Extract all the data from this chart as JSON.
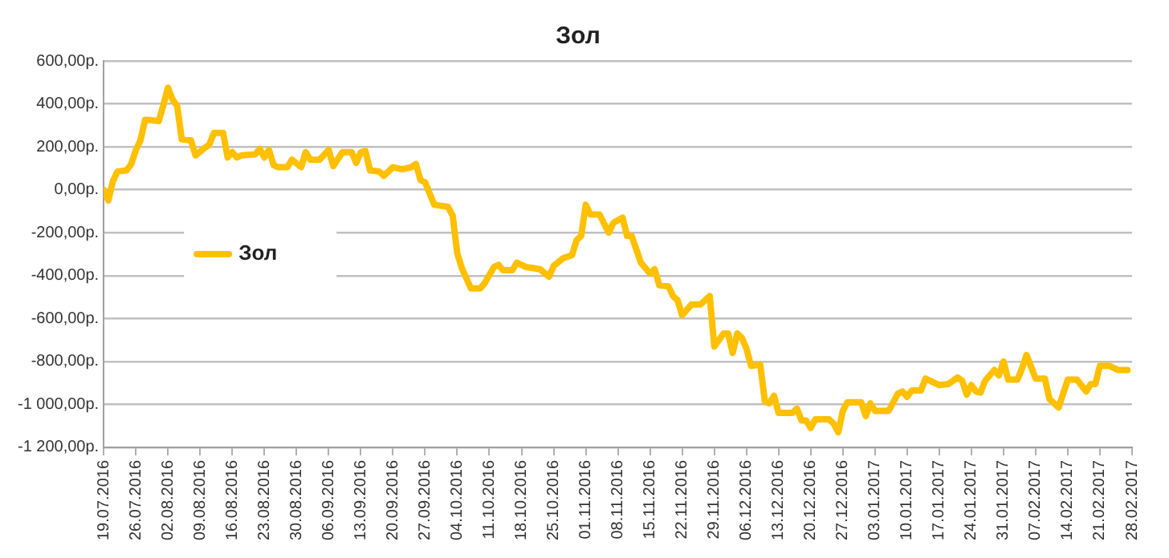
{
  "chart_data": {
    "type": "line",
    "title": "Зол",
    "xlim": [
      "2016-07-19",
      "2017-02-28"
    ],
    "xticks": [
      {
        "value": "2016-07-19",
        "label": "19.07.2016"
      },
      {
        "value": "2016-07-26",
        "label": "26.07.2016"
      },
      {
        "value": "2016-08-02",
        "label": "02.08.2016"
      },
      {
        "value": "2016-08-09",
        "label": "09.08.2016"
      },
      {
        "value": "2016-08-16",
        "label": "16.08.2016"
      },
      {
        "value": "2016-08-23",
        "label": "23.08.2016"
      },
      {
        "value": "2016-08-30",
        "label": "30.08.2016"
      },
      {
        "value": "2016-09-06",
        "label": "06.09.2016"
      },
      {
        "value": "2016-09-13",
        "label": "13.09.2016"
      },
      {
        "value": "2016-09-20",
        "label": "20.09.2016"
      },
      {
        "value": "2016-09-27",
        "label": "27.09.2016"
      },
      {
        "value": "2016-10-04",
        "label": "04.10.2016"
      },
      {
        "value": "2016-10-11",
        "label": "11.10.2016"
      },
      {
        "value": "2016-10-18",
        "label": "18.10.2016"
      },
      {
        "value": "2016-10-25",
        "label": "25.10.2016"
      },
      {
        "value": "2016-11-01",
        "label": "01.11.2016"
      },
      {
        "value": "2016-11-08",
        "label": "08.11.2016"
      },
      {
        "value": "2016-11-15",
        "label": "15.11.2016"
      },
      {
        "value": "2016-11-22",
        "label": "22.11.2016"
      },
      {
        "value": "2016-11-29",
        "label": "29.11.2016"
      },
      {
        "value": "2016-12-06",
        "label": "06.12.2016"
      },
      {
        "value": "2016-12-13",
        "label": "13.12.2016"
      },
      {
        "value": "2016-12-20",
        "label": "20.12.2016"
      },
      {
        "value": "2016-12-27",
        "label": "27.12.2016"
      },
      {
        "value": "2017-01-03",
        "label": "03.01.2017"
      },
      {
        "value": "2017-01-10",
        "label": "10.01.2017"
      },
      {
        "value": "2017-01-17",
        "label": "17.01.2017"
      },
      {
        "value": "2017-01-24",
        "label": "24.01.2017"
      },
      {
        "value": "2017-01-31",
        "label": "31.01.2017"
      },
      {
        "value": "2017-02-07",
        "label": "07.02.2017"
      },
      {
        "value": "2017-02-14",
        "label": "14.02.2017"
      },
      {
        "value": "2017-02-21",
        "label": "21.02.2017"
      },
      {
        "value": "2017-02-28",
        "label": "28.02.2017"
      }
    ],
    "ylim": [
      -1200,
      600
    ],
    "yticks": [
      {
        "value": -1200,
        "label": "-1 200,00р."
      },
      {
        "value": -1000,
        "label": "-1 000,00р."
      },
      {
        "value": -800,
        "label": "-800,00р."
      },
      {
        "value": -600,
        "label": "-600,00р."
      },
      {
        "value": -400,
        "label": "-400,00р."
      },
      {
        "value": -200,
        "label": "-200,00р."
      },
      {
        "value": 0,
        "label": "0,00р."
      },
      {
        "value": 200,
        "label": "200,00р."
      },
      {
        "value": 400,
        "label": "400,00р."
      },
      {
        "value": 600,
        "label": "600,00р."
      }
    ],
    "grid": "y",
    "legend": "left",
    "marker": "none",
    "line_style": "solid",
    "series": [
      {
        "name": "Зол",
        "color": "#ffc000",
        "x": [
          "2016-07-19",
          "2016-07-20",
          "2016-07-21",
          "2016-07-22",
          "2016-07-24",
          "2016-07-25",
          "2016-07-26",
          "2016-07-27",
          "2016-07-28",
          "2016-07-29",
          "2016-07-31",
          "2016-08-01",
          "2016-08-02",
          "2016-08-03",
          "2016-08-04",
          "2016-08-05",
          "2016-08-07",
          "2016-08-08",
          "2016-08-10",
          "2016-08-11",
          "2016-08-12",
          "2016-08-14",
          "2016-08-15",
          "2016-08-16",
          "2016-08-17",
          "2016-08-18",
          "2016-08-21",
          "2016-08-22",
          "2016-08-23",
          "2016-08-24",
          "2016-08-25",
          "2016-08-26",
          "2016-08-28",
          "2016-08-29",
          "2016-08-31",
          "2016-09-01",
          "2016-09-02",
          "2016-09-04",
          "2016-09-06",
          "2016-09-07",
          "2016-09-09",
          "2016-09-11",
          "2016-09-12",
          "2016-09-13",
          "2016-09-14",
          "2016-09-15",
          "2016-09-17",
          "2016-09-18",
          "2016-09-20",
          "2016-09-22",
          "2016-09-24",
          "2016-09-25",
          "2016-09-26",
          "2016-09-27",
          "2016-09-29",
          "2016-10-02",
          "2016-10-03",
          "2016-10-04",
          "2016-10-05",
          "2016-10-07",
          "2016-10-09",
          "2016-10-10",
          "2016-10-12",
          "2016-10-13",
          "2016-10-14",
          "2016-10-16",
          "2016-10-17",
          "2016-10-19",
          "2016-10-22",
          "2016-10-24",
          "2016-10-25",
          "2016-10-27",
          "2016-10-29",
          "2016-10-30",
          "2016-10-31",
          "2016-11-01",
          "2016-11-02",
          "2016-11-04",
          "2016-11-06",
          "2016-11-07",
          "2016-11-09",
          "2016-11-10",
          "2016-11-11",
          "2016-11-13",
          "2016-11-15",
          "2016-11-16",
          "2016-11-17",
          "2016-11-19",
          "2016-11-20",
          "2016-11-21",
          "2016-11-22",
          "2016-11-24",
          "2016-11-26",
          "2016-11-28",
          "2016-11-29",
          "2016-12-01",
          "2016-12-02",
          "2016-12-03",
          "2016-12-04",
          "2016-12-05",
          "2016-12-06",
          "2016-12-07",
          "2016-12-09",
          "2016-12-10",
          "2016-12-11",
          "2016-12-12",
          "2016-12-13",
          "2016-12-16",
          "2016-12-17",
          "2016-12-18",
          "2016-12-19",
          "2016-12-20",
          "2016-12-21",
          "2016-12-24",
          "2016-12-25",
          "2016-12-26",
          "2016-12-27",
          "2016-12-28",
          "2016-12-31",
          "2017-01-01",
          "2017-01-02",
          "2017-01-03",
          "2017-01-06",
          "2017-01-08",
          "2017-01-09",
          "2017-01-10",
          "2017-01-11",
          "2017-01-13",
          "2017-01-14",
          "2017-01-15",
          "2017-01-17",
          "2017-01-19",
          "2017-01-21",
          "2017-01-22",
          "2017-01-23",
          "2017-01-24",
          "2017-01-25",
          "2017-01-26",
          "2017-01-27",
          "2017-01-29",
          "2017-01-30",
          "2017-01-31",
          "2017-02-01",
          "2017-02-03",
          "2017-02-04",
          "2017-02-05",
          "2017-02-07",
          "2017-02-09",
          "2017-02-10",
          "2017-02-12",
          "2017-02-14",
          "2017-02-16",
          "2017-02-18",
          "2017-02-19",
          "2017-02-20",
          "2017-02-21",
          "2017-02-23",
          "2017-02-25",
          "2017-02-27"
        ],
        "values": [
          0,
          -50,
          40,
          85,
          90,
          120,
          185,
          230,
          325,
          325,
          320,
          395,
          475,
          420,
          390,
          235,
          230,
          160,
          195,
          210,
          265,
          265,
          150,
          175,
          150,
          160,
          165,
          190,
          150,
          185,
          115,
          105,
          105,
          140,
          105,
          175,
          140,
          140,
          185,
          110,
          175,
          175,
          125,
          175,
          180,
          90,
          85,
          65,
          105,
          95,
          105,
          120,
          45,
          35,
          -70,
          -80,
          -120,
          -295,
          -365,
          -460,
          -460,
          -435,
          -360,
          -350,
          -375,
          -375,
          -340,
          -360,
          -370,
          -405,
          -355,
          -320,
          -305,
          -235,
          -215,
          -70,
          -115,
          -115,
          -200,
          -155,
          -130,
          -215,
          -215,
          -340,
          -390,
          -370,
          -445,
          -450,
          -495,
          -515,
          -585,
          -535,
          -535,
          -495,
          -730,
          -670,
          -670,
          -760,
          -670,
          -690,
          -740,
          -820,
          -815,
          -985,
          -995,
          -960,
          -1040,
          -1040,
          -1020,
          -1075,
          -1075,
          -1110,
          -1070,
          -1070,
          -1090,
          -1130,
          -1030,
          -990,
          -990,
          -1055,
          -995,
          -1030,
          -1030,
          -950,
          -940,
          -965,
          -935,
          -935,
          -880,
          -890,
          -910,
          -905,
          -875,
          -890,
          -955,
          -910,
          -940,
          -945,
          -890,
          -840,
          -865,
          -800,
          -885,
          -885,
          -835,
          -770,
          -880,
          -880,
          -975,
          -1015,
          -885,
          -885,
          -940,
          -905,
          -905,
          -820,
          -820,
          -840,
          -840
        ]
      }
    ]
  }
}
